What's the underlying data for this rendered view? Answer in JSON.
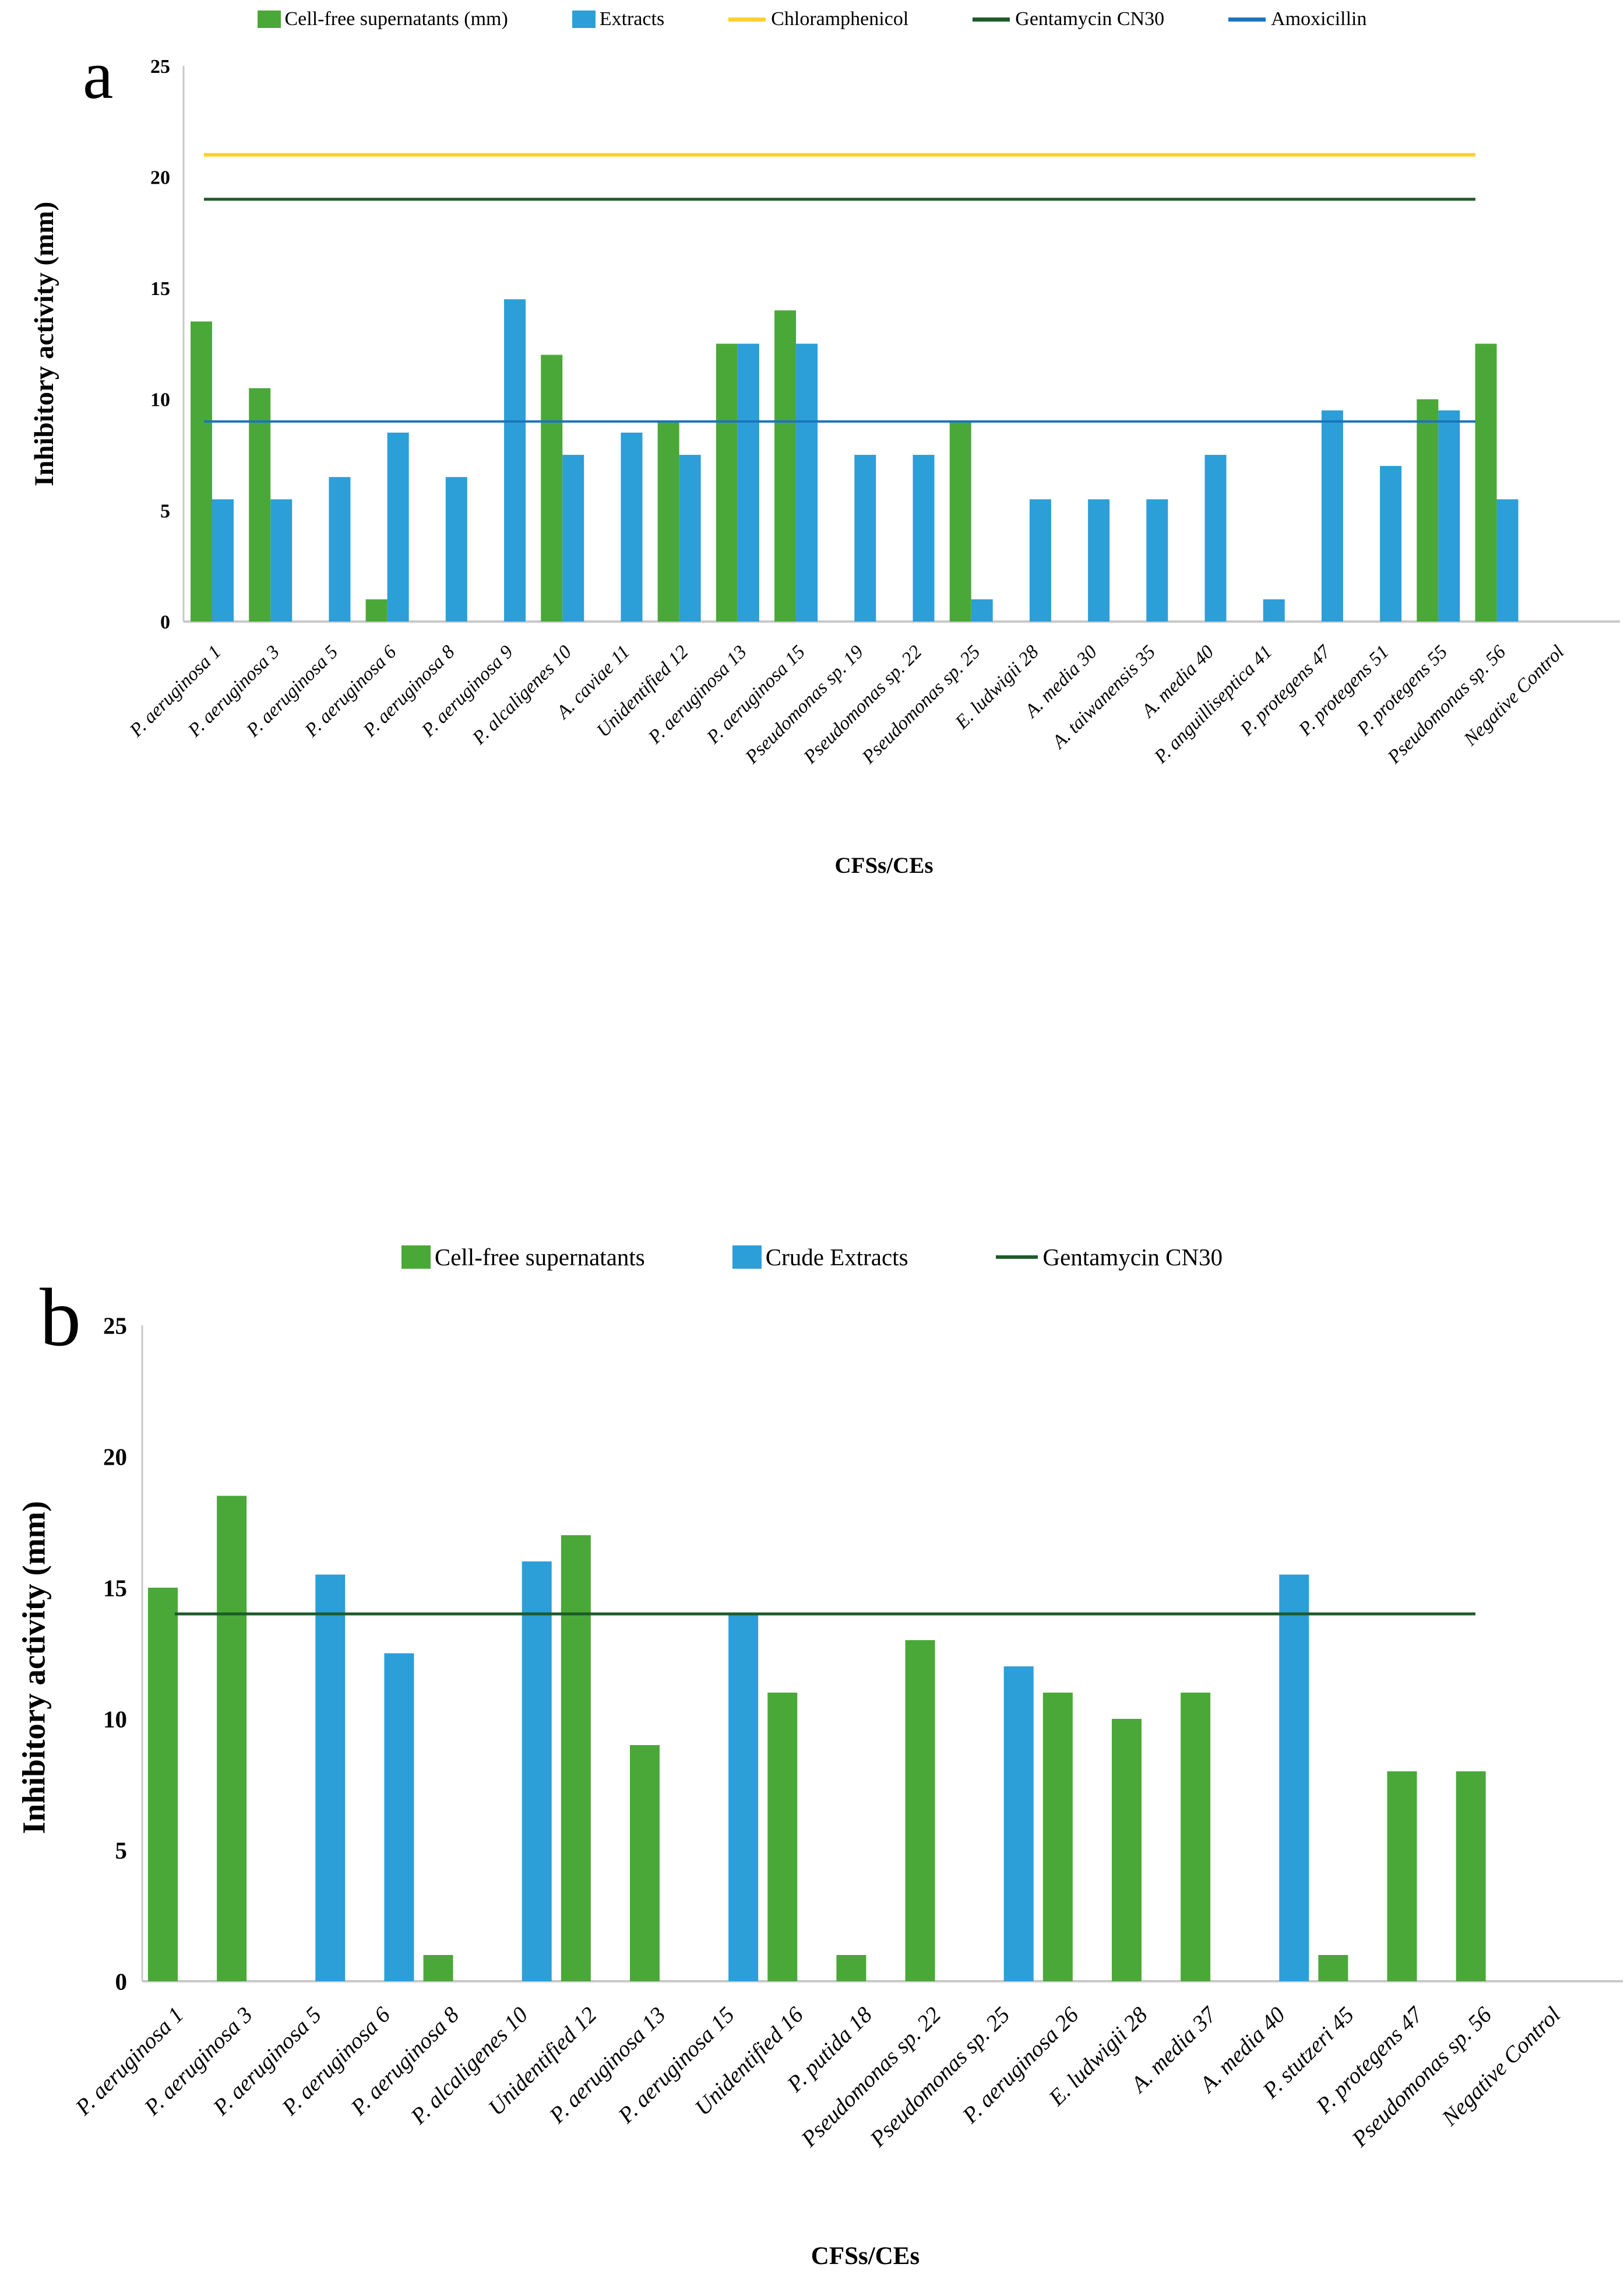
{
  "chart_data": [
    {
      "type": "bar",
      "panel_letter": "a",
      "title": "",
      "xlabel": "CFSs/CEs",
      "ylabel": "Inhibitory activity (mm)",
      "ylim": [
        0,
        25
      ],
      "yticks": [
        0,
        5,
        10,
        15,
        20,
        25
      ],
      "grid": "off",
      "legend_position": "top-center",
      "axis_color": "#c8c8c8",
      "legend": [
        {
          "label": "Cell-free supernatants (mm)",
          "marker": "swatch",
          "color": "#4aa838"
        },
        {
          "label": "Extracts",
          "marker": "swatch",
          "color": "#2c9ed8"
        },
        {
          "label": "Chloramphenicol",
          "marker": "line",
          "color": "#ffd02a"
        },
        {
          "label": "Gentamycin CN30",
          "marker": "line",
          "color": "#1e5b28"
        },
        {
          "label": "Amoxicillin",
          "marker": "line",
          "color": "#1b74bc"
        }
      ],
      "categories": [
        "P. aeruginosa 1",
        "P. aeruginosa 3",
        "P. aeruginosa 5",
        "P. aeruginosa 6",
        "P. aeruginosa 8",
        "P. aeruginosa 9",
        "P. alcaligenes 10",
        "A. caviae 11",
        "Unidentified 12",
        "P. aeruginosa 13",
        "P. aeruginosa 15",
        "Pseudomonas sp. 19",
        "Pseudomonas sp. 22",
        "Pseudomonas sp. 25",
        "E. ludwigii 28",
        "A. media 30",
        "A. taiwanensis 35",
        "A. media 40",
        "P. anguilliseptica 41",
        "P. protegens 47",
        "P. protegens 51",
        "P. protegens 55",
        "Pseudomonas sp. 56",
        "Negative Control"
      ],
      "series": [
        {
          "name": "Cell-free supernatants (mm)",
          "color": "#4aa838",
          "values": [
            13.5,
            10.5,
            null,
            1,
            null,
            null,
            12,
            null,
            9,
            12.5,
            14,
            null,
            null,
            9,
            null,
            null,
            null,
            null,
            null,
            null,
            null,
            10,
            12.5,
            null
          ]
        },
        {
          "name": "Extracts",
          "color": "#2c9ed8",
          "values": [
            5.5,
            5.5,
            6.5,
            8.5,
            6.5,
            14.5,
            7.5,
            8.5,
            7.5,
            12.5,
            12.5,
            7.5,
            7.5,
            1,
            5.5,
            5.5,
            5.5,
            7.5,
            1,
            9.5,
            7,
            9.5,
            5.5,
            null
          ]
        }
      ],
      "ref_lines": [
        {
          "name": "Chloramphenicol",
          "value": 21,
          "color": "#ffd02a"
        },
        {
          "name": "Gentamycin CN30",
          "value": 19,
          "color": "#1e5b28"
        },
        {
          "name": "Amoxicillin",
          "value": 9,
          "color": "#1b74bc"
        }
      ]
    },
    {
      "type": "bar",
      "panel_letter": "b",
      "title": "",
      "xlabel": "CFSs/CEs",
      "ylabel": "Inhibitory activity (mm)",
      "ylim": [
        0,
        25
      ],
      "yticks": [
        0,
        5,
        10,
        15,
        20,
        25
      ],
      "grid": "off",
      "legend_position": "top-center",
      "axis_color": "#c8c8c8",
      "legend": [
        {
          "label": "Cell-free supernatants",
          "marker": "swatch",
          "color": "#4aa838"
        },
        {
          "label": "Crude Extracts",
          "marker": "swatch",
          "color": "#2c9ed8"
        },
        {
          "label": "Gentamycin CN30",
          "marker": "line",
          "color": "#1e5b28"
        }
      ],
      "categories": [
        "P. aeruginosa 1",
        "P. aeruginosa 3",
        "P. aeruginosa 5",
        "P. aeruginosa 6",
        "P. aeruginosa 8",
        "P. alcaligenes 10",
        "Unidentified 12",
        "P. aeruginosa 13",
        "P. aeruginosa 15",
        "Unidentified 16",
        "P. putida 18",
        "Pseudomonas sp. 22",
        "Pseudomonas sp. 25",
        "P. aeruginosa 26",
        "E. ludwigii 28",
        "A. media 37",
        "A. media 40",
        "P. stutzeri 45",
        "P. protegens 47",
        "Pseudomonas sp. 56",
        "Negative Control"
      ],
      "series": [
        {
          "name": "Cell-free supernatants",
          "color": "#4aa838",
          "values": [
            15,
            18.5,
            null,
            null,
            1,
            null,
            17,
            9,
            null,
            11,
            1,
            13,
            null,
            11,
            10,
            11,
            null,
            1,
            8,
            8,
            null
          ]
        },
        {
          "name": "Crude Extracts",
          "color": "#2c9ed8",
          "values": [
            null,
            null,
            15.5,
            12.5,
            null,
            16,
            null,
            null,
            14,
            null,
            null,
            null,
            12,
            null,
            null,
            null,
            15.5,
            null,
            null,
            null,
            null
          ]
        }
      ],
      "ref_lines": [
        {
          "name": "Gentamycin CN30",
          "value": 14,
          "color": "#1e5b28"
        }
      ]
    }
  ]
}
